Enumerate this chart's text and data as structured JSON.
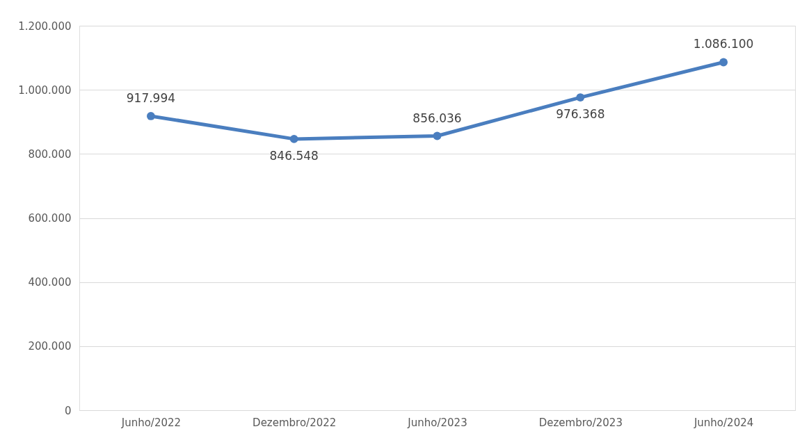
{
  "chart_data": {
    "type": "line",
    "categories": [
      "Junho/2022",
      "Dezembro/2022",
      "Junho/2023",
      "Dezembro/2023",
      "Junho/2024"
    ],
    "series": [
      {
        "color": "#4a7ebf",
        "values": [
          917994,
          846548,
          856036,
          976368,
          1086100
        ],
        "value_labels": [
          "917.994",
          "846.548",
          "856.036",
          "976.368",
          "1.086.100"
        ]
      }
    ],
    "ylim": [
      0,
      1200000
    ],
    "yticks": [
      0,
      {
        "value": 200000,
        "label": "200.000"
      },
      {
        "value": 400000,
        "label": "400.000"
      },
      {
        "value": 600000,
        "label": "600.000"
      },
      {
        "value": 800000,
        "label": "800.000"
      },
      {
        "value": 1000000,
        "label": "1.000.000"
      },
      {
        "value": 1200000,
        "label": "1.200.000"
      }
    ],
    "grid": "y",
    "marker": "circle",
    "line_style": "solid",
    "legend": false
  }
}
